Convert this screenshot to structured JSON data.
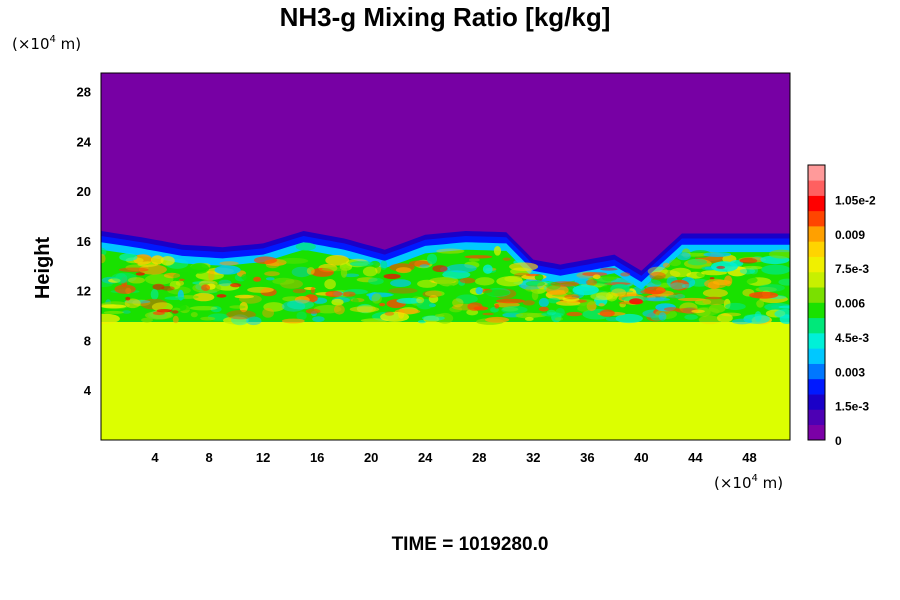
{
  "chart_data": {
    "type": "heatmap",
    "title": "NH3-g Mixing Ratio [kg/kg]",
    "ylabel": "Height",
    "xlabel": "",
    "x_unit": {
      "prefix": "(×10",
      "exp": "4",
      "suffix": " m)"
    },
    "y_unit": {
      "prefix": "(×10",
      "exp": "4",
      "suffix": " m)"
    },
    "xlim": [
      0,
      51
    ],
    "ylim": [
      0,
      29.5
    ],
    "x_ticks": [
      4,
      8,
      12,
      16,
      20,
      24,
      28,
      32,
      36,
      40,
      44,
      48
    ],
    "x_tick_labels": [
      "4",
      "8",
      "12",
      "16",
      "20",
      "24",
      "28",
      "32",
      "36",
      "40",
      "44",
      "48"
    ],
    "y_ticks": [
      4,
      8,
      12,
      16,
      20,
      24,
      28
    ],
    "y_tick_labels": [
      "4",
      "8",
      "12",
      "16",
      "20",
      "24",
      "28"
    ],
    "colorbar": {
      "min": 0,
      "max": 0.012,
      "ticks": [
        0,
        0.0015,
        0.003,
        0.0045,
        0.006,
        0.0075,
        0.009,
        0.0105
      ],
      "tick_labels": [
        "0",
        "1.5e-3",
        "0.003",
        "4.5e-3",
        "0.006",
        "7.5e-3",
        "0.009",
        "1.05e-2"
      ]
    },
    "regions": {
      "lower_uniform_value": 0.0078,
      "lower_uniform_top": 9.5,
      "upper_value": 0.0,
      "interface_height": [
        {
          "x": 0,
          "y": 16.8
        },
        {
          "x": 3,
          "y": 16.3
        },
        {
          "x": 6,
          "y": 15.7
        },
        {
          "x": 9,
          "y": 15.5
        },
        {
          "x": 12,
          "y": 15.8
        },
        {
          "x": 15,
          "y": 16.8
        },
        {
          "x": 18,
          "y": 16.2
        },
        {
          "x": 21,
          "y": 15.3
        },
        {
          "x": 24,
          "y": 16.5
        },
        {
          "x": 27,
          "y": 16.8
        },
        {
          "x": 30,
          "y": 16.7
        },
        {
          "x": 32,
          "y": 14.5
        },
        {
          "x": 34,
          "y": 14.1
        },
        {
          "x": 36,
          "y": 14.5
        },
        {
          "x": 38,
          "y": 14.9
        },
        {
          "x": 40,
          "y": 13.6
        },
        {
          "x": 42,
          "y": 15.6
        },
        {
          "x": 43,
          "y": 16.6
        },
        {
          "x": 46,
          "y": 16.6
        },
        {
          "x": 51,
          "y": 16.6
        }
      ]
    }
  },
  "time_label": "TIME = 1019280.0",
  "colors": {
    "background": "#ffffff",
    "upper_region": "#7700a4",
    "lower_region": "#dcff00"
  },
  "colormap": [
    "#7b00a7",
    "#4d00b4",
    "#1a00c8",
    "#0019ff",
    "#0077ff",
    "#00c8ff",
    "#00f0d8",
    "#00e87a",
    "#19e100",
    "#7ae000",
    "#c8f000",
    "#f0f000",
    "#ffd400",
    "#ffa000",
    "#ff4500",
    "#ff0000",
    "#ff6060",
    "#ff9a9a"
  ]
}
